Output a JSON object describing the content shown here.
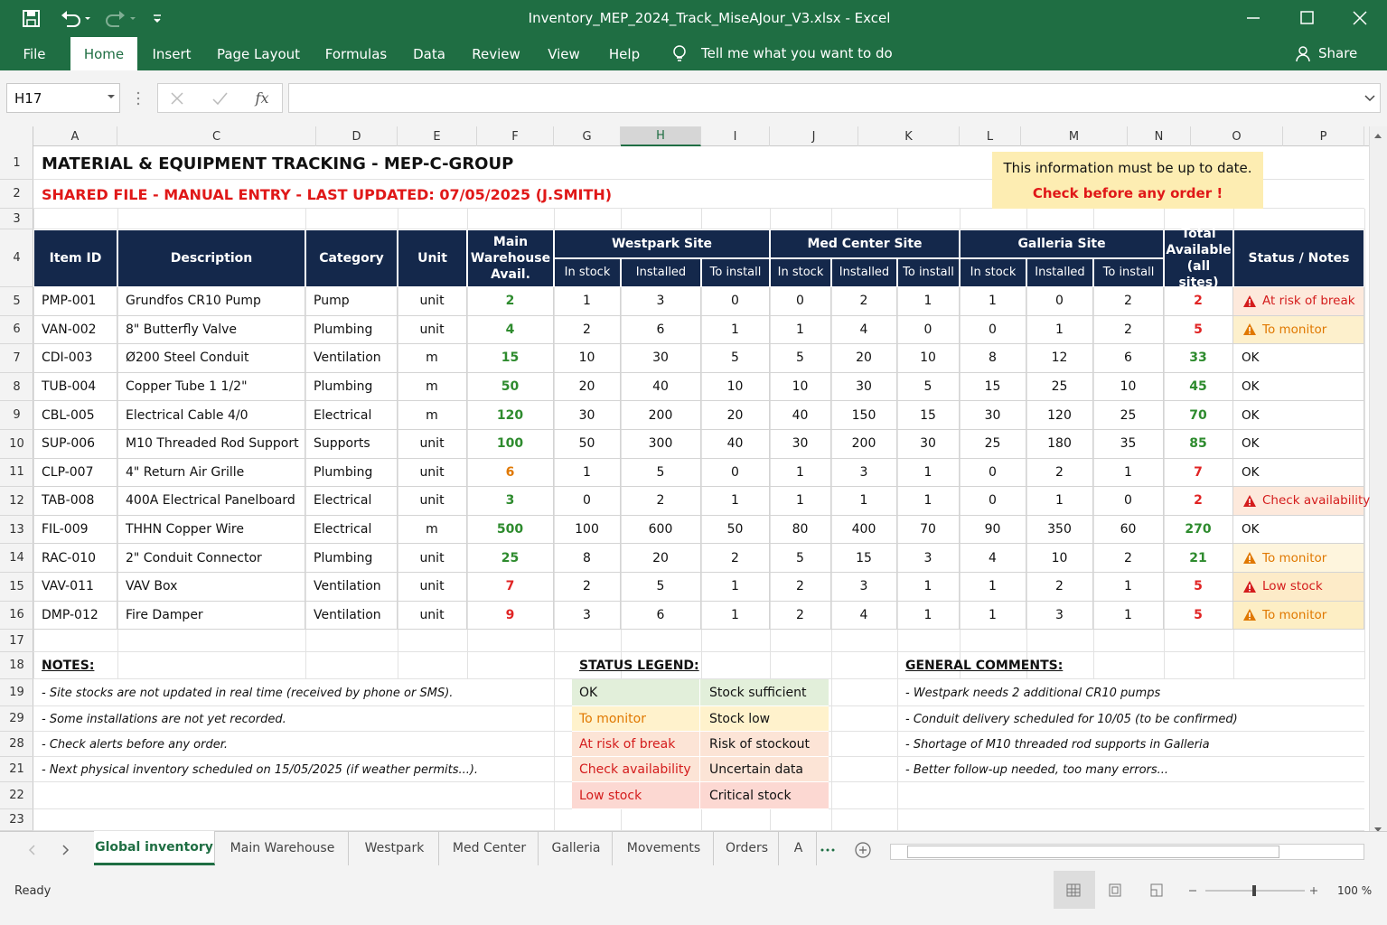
{
  "title_bar": {
    "title": "Inventory_MEP_2024_Track_MiseAJour_V3.xlsx  -  Excel"
  },
  "ribbon": {
    "tabs": [
      "File",
      "Home",
      "Insert",
      "Page Layout",
      "Formulas",
      "Data",
      "Review",
      "View",
      "Help"
    ],
    "active_tab": 1,
    "tell_me": "Tell me what you want to do",
    "share": "Share"
  },
  "formula_bar": {
    "name_box": "H17",
    "fx": "fx"
  },
  "columns": [
    "A",
    "C",
    "D",
    "E",
    "F",
    "G",
    "H",
    "I",
    "J",
    "K",
    "L",
    "M",
    "N",
    "O",
    "P"
  ],
  "rows": [
    1,
    2,
    3,
    4,
    5,
    6,
    7,
    8,
    9,
    10,
    11,
    12,
    13,
    14,
    15,
    16,
    17,
    18,
    19,
    29,
    28,
    21,
    22,
    23
  ],
  "sheet": {
    "title": "MATERIAL & EQUIPMENT TRACKING - MEP-C-GROUP",
    "subtitle": "SHARED FILE - MANUAL ENTRY - LAST UPDATED: 07/05/2025 (J.SMITH)",
    "notice": [
      "This information must be up to date.",
      "Check before any order !"
    ]
  },
  "table": {
    "headers": {
      "item_id": "Item ID",
      "description": "Description",
      "category": "Category",
      "unit": "Unit",
      "main": "Main Warehouse Avail.",
      "total": "Total Available (all sites)",
      "status": "Status / Notes"
    },
    "groups": [
      {
        "name": "Westpark Site",
        "sub": [
          "In stock",
          "Installed",
          "To install"
        ]
      },
      {
        "name": "Med Center Site",
        "sub": [
          "In stock",
          "Installed",
          "To install"
        ]
      },
      {
        "name": "Galleria Site",
        "sub": [
          "In stock",
          "Installed",
          "To install"
        ]
      }
    ],
    "items": [
      {
        "id": "PMP-001",
        "description": "Grundfos CR10 Pump",
        "category": "Pump",
        "unit": "unit",
        "main": 2,
        "sites": [
          [
            1,
            3,
            0
          ],
          [
            0,
            2,
            1
          ],
          [
            1,
            0,
            2
          ]
        ],
        "total": 2,
        "status": "At risk of break",
        "main_color": "#2e8b2e",
        "total_color": "#e02424",
        "status_color": "#d41c1c",
        "status_bg": "#fde9dc",
        "icon": true
      },
      {
        "id": "VAN-002",
        "description": "8\" Butterfly Valve",
        "category": "Plumbing",
        "unit": "unit",
        "main": 4,
        "sites": [
          [
            2,
            6,
            1
          ],
          [
            1,
            4,
            0
          ],
          [
            0,
            1,
            2
          ]
        ],
        "total": 5,
        "status": "To monitor",
        "main_color": "#2e8b2e",
        "total_color": "#e02424",
        "status_color": "#e07800",
        "status_bg": "#fdf0cc",
        "icon": true
      },
      {
        "id": "CDI-003",
        "description": "Ø200 Steel Conduit",
        "category": "Ventilation",
        "unit": "m",
        "main": 15,
        "sites": [
          [
            10,
            30,
            5
          ],
          [
            5,
            20,
            10
          ],
          [
            8,
            12,
            6
          ]
        ],
        "total": 33,
        "status": "OK",
        "main_color": "#2e8b2e",
        "total_color": "#2e8b2e",
        "status_color": "#111111",
        "status_bg": "#ffffff",
        "icon": false
      },
      {
        "id": "TUB-004",
        "description": "Copper Tube 1 1/2\"",
        "category": "Plumbing",
        "unit": "m",
        "main": 50,
        "sites": [
          [
            20,
            40,
            10
          ],
          [
            10,
            30,
            5
          ],
          [
            15,
            25,
            10
          ]
        ],
        "total": 45,
        "status": "OK",
        "main_color": "#2e8b2e",
        "total_color": "#2e8b2e",
        "status_color": "#111111",
        "status_bg": "#ffffff",
        "icon": false
      },
      {
        "id": "CBL-005",
        "description": "Electrical Cable 4/0",
        "category": "Electrical",
        "unit": "m",
        "main": 120,
        "sites": [
          [
            30,
            200,
            20
          ],
          [
            40,
            150,
            15
          ],
          [
            30,
            120,
            25
          ]
        ],
        "total": 70,
        "status": "OK",
        "main_color": "#2e8b2e",
        "total_color": "#2e8b2e",
        "status_color": "#111111",
        "status_bg": "#ffffff",
        "icon": false
      },
      {
        "id": "SUP-006",
        "description": "M10 Threaded Rod Support",
        "category": "Supports",
        "unit": "unit",
        "main": 100,
        "sites": [
          [
            50,
            300,
            40
          ],
          [
            30,
            200,
            30
          ],
          [
            25,
            180,
            35
          ]
        ],
        "total": 85,
        "status": "OK",
        "main_color": "#2e8b2e",
        "total_color": "#2e8b2e",
        "status_color": "#111111",
        "status_bg": "#ffffff",
        "icon": false
      },
      {
        "id": "CLP-007",
        "description": "4\" Return Air Grille",
        "category": "Plumbing",
        "unit": "unit",
        "main": 6,
        "sites": [
          [
            1,
            5,
            0
          ],
          [
            1,
            3,
            1
          ],
          [
            0,
            2,
            1
          ]
        ],
        "total": 7,
        "status": "OK",
        "main_color": "#e07800",
        "total_color": "#e02424",
        "status_color": "#111111",
        "status_bg": "#ffffff",
        "icon": false
      },
      {
        "id": "TAB-008",
        "description": "400A Electrical Panelboard",
        "category": "Electrical",
        "unit": "unit",
        "main": 3,
        "sites": [
          [
            0,
            2,
            1
          ],
          [
            1,
            1,
            1
          ],
          [
            0,
            1,
            0
          ]
        ],
        "total": 2,
        "status": "Check availability",
        "main_color": "#2e8b2e",
        "total_color": "#e02424",
        "status_color": "#d41c1c",
        "status_bg": "#fde9dc",
        "icon": true
      },
      {
        "id": "FIL-009",
        "description": "THHN Copper Wire",
        "category": "Electrical",
        "unit": "m",
        "main": 500,
        "sites": [
          [
            100,
            600,
            50
          ],
          [
            80,
            400,
            70
          ],
          [
            90,
            350,
            60
          ]
        ],
        "total": 270,
        "status": "OK",
        "main_color": "#2e8b2e",
        "total_color": "#2e8b2e",
        "status_color": "#111111",
        "status_bg": "#ffffff",
        "icon": false
      },
      {
        "id": "RAC-010",
        "description": "2\" Conduit Connector",
        "category": "Plumbing",
        "unit": "unit",
        "main": 25,
        "sites": [
          [
            8,
            20,
            2
          ],
          [
            5,
            15,
            3
          ],
          [
            4,
            10,
            2
          ]
        ],
        "total": 21,
        "status": "To monitor",
        "main_color": "#2e8b2e",
        "total_color": "#2e8b2e",
        "status_color": "#e07800",
        "status_bg": "#fef5dd",
        "icon": true
      },
      {
        "id": "VAV-011",
        "description": "VAV Box",
        "category": "Ventilation",
        "unit": "unit",
        "main": 7,
        "sites": [
          [
            2,
            5,
            1
          ],
          [
            2,
            3,
            1
          ],
          [
            1,
            2,
            1
          ]
        ],
        "total": 5,
        "status": "Low stock",
        "main_color": "#e02424",
        "total_color": "#e02424",
        "status_color": "#d41c1c",
        "status_bg": "#fdebc8",
        "icon": true
      },
      {
        "id": "DMP-012",
        "description": "Fire Damper",
        "category": "Ventilation",
        "unit": "unit",
        "main": 9,
        "sites": [
          [
            3,
            6,
            1
          ],
          [
            2,
            4,
            1
          ],
          [
            1,
            3,
            1
          ]
        ],
        "total": 5,
        "status": "To monitor",
        "main_color": "#e02424",
        "total_color": "#e02424",
        "status_color": "#e07800",
        "status_bg": "#fdeec4",
        "icon": true
      }
    ]
  },
  "notes": {
    "heading": "NOTES:",
    "items": [
      "- Site stocks are not updated in real time (received by phone or SMS).",
      "- Some installations are not yet recorded.",
      "- Check alerts before any order.",
      "- Next physical inventory scheduled on 15/05/2025 (if weather permits...)."
    ]
  },
  "legend": {
    "heading": "STATUS LEGEND:",
    "items": [
      {
        "label": "OK",
        "meaning": "Stock sufficient",
        "color": "#111111",
        "background": "#e2efda"
      },
      {
        "label": "To monitor",
        "meaning": "Stock low",
        "color": "#e07800",
        "background": "#fff2cc"
      },
      {
        "label": "At risk of break",
        "meaning": "Risk of stockout",
        "color": "#d41c1c",
        "background": "#fce4d6"
      },
      {
        "label": "Check availability",
        "meaning": "Uncertain data",
        "color": "#d41c1c",
        "background": "#fce4d6"
      },
      {
        "label": "Low stock",
        "meaning": "Critical stock",
        "color": "#d41c1c",
        "background": "#fcd8d2"
      }
    ]
  },
  "comments": {
    "heading": "GENERAL COMMENTS:",
    "items": [
      "- Westpark needs 2 additional CR10 pumps",
      "- Conduit delivery scheduled for 10/05 (to be confirmed)",
      "- Shortage of M10 threaded rod supports in Galleria",
      "- Better follow-up needed, too many errors..."
    ]
  },
  "sheet_tabs": {
    "tabs": [
      "Global inventory",
      "Main Warehouse",
      "Westpark",
      "Med Center",
      "Galleria",
      "Movements",
      "Orders",
      "A"
    ],
    "active": 0
  },
  "status_bar": {
    "status": "Ready",
    "zoom": "100 %"
  }
}
